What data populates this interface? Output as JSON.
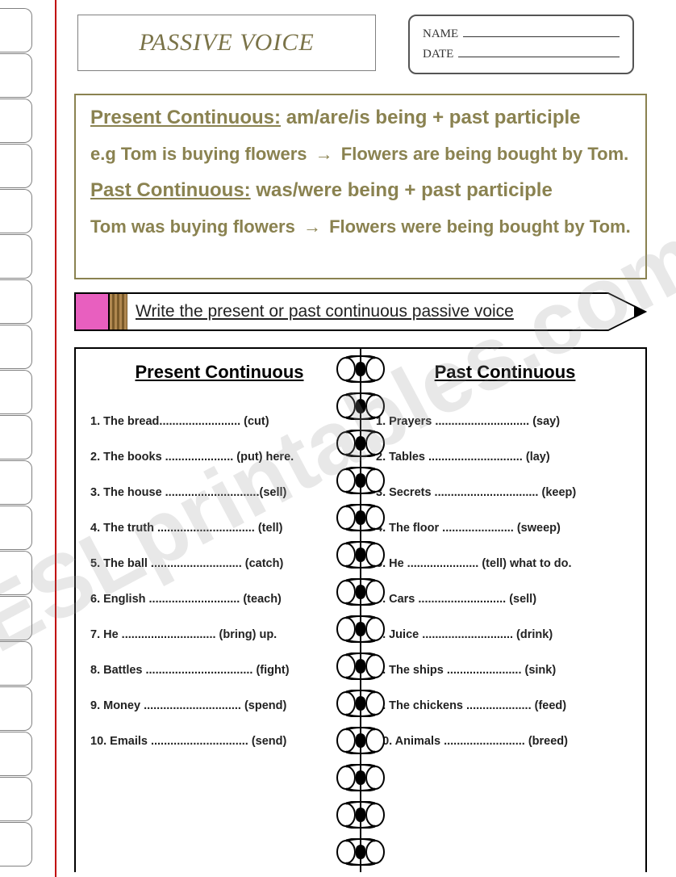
{
  "title": "PASSIVE VOICE",
  "name_label": "NAME",
  "date_label": "DATE",
  "rules": {
    "present": {
      "heading": "Present Continuous:",
      "formula": "am/are/is being + past participle"
    },
    "present_example": {
      "prefix": "e.g Tom is buying flowers",
      "result": "Flowers are being bought by Tom."
    },
    "past": {
      "heading": "Past Continuous:",
      "formula": "was/were being + past participle"
    },
    "past_example": {
      "prefix": "Tom was buying flowers",
      "result": "Flowers were being bought by Tom."
    }
  },
  "instruction": "Write the present or past continuous passive voice",
  "columns": {
    "left_heading": "Present Continuous",
    "right_heading": "Past Continuous",
    "left": [
      "1.  The bread......................... (cut)",
      "2.  The books ..................... (put) here.",
      "3.  The house .............................(sell)",
      "4.  The truth .............................. (tell)",
      "5.  The ball ............................ (catch)",
      "6.  English ............................ (teach)",
      "7.  He ............................. (bring) up.",
      "8.  Battles ................................. (fight)",
      "9.  Money .............................. (spend)",
      "10.  Emails .............................. (send)"
    ],
    "right": [
      "1.  Prayers ............................. (say)",
      "2. Tables ............................. (lay)",
      "3. Secrets ................................ (keep)",
      "4. The floor ...................... (sweep)",
      "5. He ...................... (tell) what to do.",
      "6.  Cars ........................... (sell)",
      "7. Juice ............................ (drink)",
      "8. The ships ....................... (sink)",
      "9. The chickens .................... (feed)",
      "10. Animals ......................... (breed)"
    ]
  },
  "watermark": "ESLprintables.com",
  "colors": {
    "accent": "#8a8250",
    "red_margin": "#c00000",
    "eraser": "#e85fbf"
  },
  "ring_count": 14,
  "notch_count": 19
}
